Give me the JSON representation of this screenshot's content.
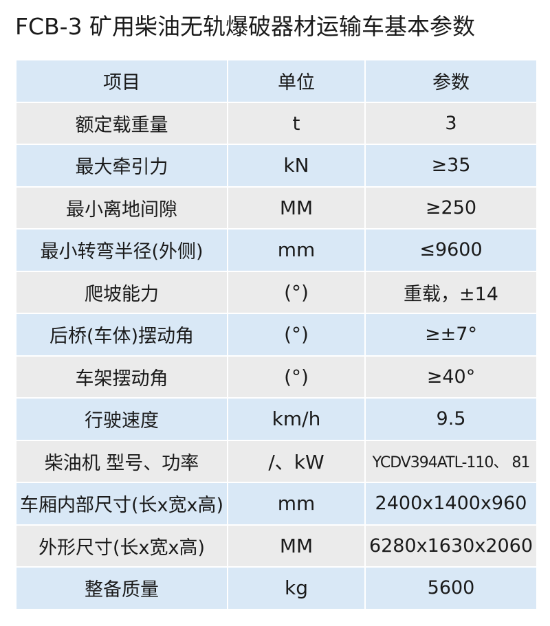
{
  "title": "FCB-3 矿用柴油无轨爆破器材运输车基本参数",
  "table": {
    "headers": [
      "项目",
      "单位",
      "参数"
    ],
    "rows": [
      [
        "额定载重量",
        "t",
        "3"
      ],
      [
        "最大牵引力",
        "kN",
        "≥35"
      ],
      [
        "最小离地间隙",
        "MM",
        "≥250"
      ],
      [
        "最小转弯半径(外侧)",
        "mm",
        "≤9600"
      ],
      [
        "爬坡能力",
        "(°)",
        "重载，±14"
      ],
      [
        "后桥(车体)摆动角",
        "(°)",
        "≥±7°"
      ],
      [
        "车架摆动角",
        "(°)",
        "≥40°"
      ],
      [
        "行驶速度",
        "km/h",
        "9.5"
      ],
      [
        "柴油机 型号、功率",
        "/、kW",
        "YCDV394ATL-110、 81"
      ],
      [
        "车厢内部尺寸(长x宽x高)",
        "mm",
        "2400x1400x960"
      ],
      [
        "外形尺寸(长x宽x高)",
        "MM",
        "6280x1630x2060"
      ],
      [
        "整备质量",
        "kg",
        "5600"
      ]
    ]
  },
  "colors": {
    "row_blue": "#d9e8f6",
    "row_gray": "#ebebeb"
  }
}
